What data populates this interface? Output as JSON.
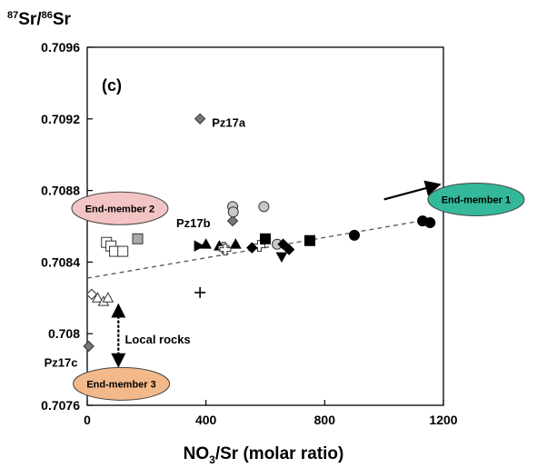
{
  "chart_data": {
    "type": "scatter",
    "panel_label": "(c)",
    "ylabel": {
      "sup1": "87",
      "a": "Sr/",
      "sup2": "86",
      "b": "Sr"
    },
    "xlabel": {
      "a": "NO",
      "sub": "3",
      "b": "/Sr (molar ratio)"
    },
    "xlim": [
      0,
      1200
    ],
    "ylim": [
      0.7076,
      0.7096
    ],
    "x_ticks": [
      {
        "value": 0,
        "label": "0"
      },
      {
        "value": 400,
        "label": "400"
      },
      {
        "value": 800,
        "label": "800"
      },
      {
        "value": 1200,
        "label": "1200"
      }
    ],
    "y_ticks": [
      {
        "value": 0.7076,
        "label": "0.7076"
      },
      {
        "value": 0.708,
        "label": "0.708"
      },
      {
        "value": 0.7084,
        "label": "0.7084"
      },
      {
        "value": 0.7088,
        "label": "0.7088"
      },
      {
        "value": 0.7092,
        "label": "0.7092"
      },
      {
        "value": 0.7096,
        "label": "0.7096"
      }
    ],
    "trend_line": {
      "x": [
        0,
        1160
      ],
      "y": [
        0.70831,
        0.70864
      ],
      "style": "dashed",
      "color": "#555555"
    },
    "end_member_1_arrow": {
      "from": [
        1000,
        0.70875
      ],
      "to": [
        1180,
        0.70883
      ]
    },
    "local_rocks_arrow": {
      "x": 105,
      "y_from": 0.70783,
      "y_to": 0.70815
    },
    "annotations": [
      {
        "text": "Pz17a",
        "x": 420,
        "y": 0.70918
      },
      {
        "text": "Pz17b",
        "x": 300,
        "y": 0.70862
      },
      {
        "text": "Pz17c",
        "x": -145,
        "y": 0.70784
      },
      {
        "text": "Local rocks",
        "x": 127,
        "y": 0.70797
      }
    ],
    "end_members": [
      {
        "label": "End-member 1",
        "cx": 1310,
        "cy": 0.70875,
        "fill": "#33b99a"
      },
      {
        "label": "End-member 2",
        "cx": 110,
        "cy": 0.7087,
        "fill": "#f3c4c4"
      },
      {
        "label": "End-member 3",
        "cx": 115,
        "cy": 0.70772,
        "fill": "#f4b98a"
      }
    ],
    "points": [
      {
        "x": 380,
        "y": 0.7092,
        "marker": "diamond",
        "fill": "#777777"
      },
      {
        "x": 490,
        "y": 0.70863,
        "marker": "diamond",
        "fill": "#777777"
      },
      {
        "x": 5,
        "y": 0.70793,
        "marker": "diamond",
        "fill": "#777777"
      },
      {
        "x": 490,
        "y": 0.70871,
        "marker": "circle",
        "fill": "#c8c8c8"
      },
      {
        "x": 492,
        "y": 0.70868,
        "marker": "circle",
        "fill": "#c8c8c8"
      },
      {
        "x": 595,
        "y": 0.70871,
        "marker": "circle",
        "fill": "#c8c8c8"
      },
      {
        "x": 640,
        "y": 0.7085,
        "marker": "circle",
        "fill": "#c8c8c8"
      },
      {
        "x": 170,
        "y": 0.70853,
        "marker": "square",
        "fill": "#aaaaaa"
      },
      {
        "x": 65,
        "y": 0.70851,
        "marker": "square",
        "fill": "#ffffff"
      },
      {
        "x": 80,
        "y": 0.70849,
        "marker": "square",
        "fill": "#ffffff"
      },
      {
        "x": 92,
        "y": 0.70846,
        "marker": "square",
        "fill": "#ffffff"
      },
      {
        "x": 120,
        "y": 0.70846,
        "marker": "square",
        "fill": "#ffffff"
      },
      {
        "x": 375,
        "y": 0.70849,
        "marker": "triangle-right",
        "fill": "#000000"
      },
      {
        "x": 400,
        "y": 0.7085,
        "marker": "triangle",
        "fill": "#000000"
      },
      {
        "x": 445,
        "y": 0.70849,
        "marker": "triangle",
        "fill": "#000000"
      },
      {
        "x": 500,
        "y": 0.7085,
        "marker": "triangle",
        "fill": "#000000"
      },
      {
        "x": 460,
        "y": 0.70848,
        "marker": "plus-open",
        "fill": "#ffffff"
      },
      {
        "x": 465,
        "y": 0.70847,
        "marker": "plus-open",
        "fill": "#ffffff"
      },
      {
        "x": 580,
        "y": 0.70849,
        "marker": "plus-open",
        "fill": "#ffffff"
      },
      {
        "x": 555,
        "y": 0.70848,
        "marker": "diamond",
        "fill": "#000000"
      },
      {
        "x": 600,
        "y": 0.70853,
        "marker": "square",
        "fill": "#000000"
      },
      {
        "x": 660,
        "y": 0.7085,
        "marker": "diamond",
        "fill": "#000000"
      },
      {
        "x": 680,
        "y": 0.70847,
        "marker": "diamond",
        "fill": "#000000"
      },
      {
        "x": 655,
        "y": 0.70843,
        "marker": "triangle-down",
        "fill": "#000000"
      },
      {
        "x": 750,
        "y": 0.70852,
        "marker": "square",
        "fill": "#000000"
      },
      {
        "x": 900,
        "y": 0.70855,
        "marker": "circle",
        "fill": "#000000"
      },
      {
        "x": 1130,
        "y": 0.70863,
        "marker": "circle",
        "fill": "#000000"
      },
      {
        "x": 1155,
        "y": 0.70862,
        "marker": "circle",
        "fill": "#000000"
      },
      {
        "x": 380,
        "y": 0.70823,
        "marker": "plus",
        "fill": "#000000"
      },
      {
        "x": 15,
        "y": 0.70822,
        "marker": "diamond",
        "fill": "#ffffff"
      },
      {
        "x": 35,
        "y": 0.7082,
        "marker": "triangle",
        "fill": "#ffffff"
      },
      {
        "x": 55,
        "y": 0.70818,
        "marker": "triangle",
        "fill": "#ffffff"
      },
      {
        "x": 70,
        "y": 0.7082,
        "marker": "triangle",
        "fill": "#ffffff"
      }
    ]
  }
}
